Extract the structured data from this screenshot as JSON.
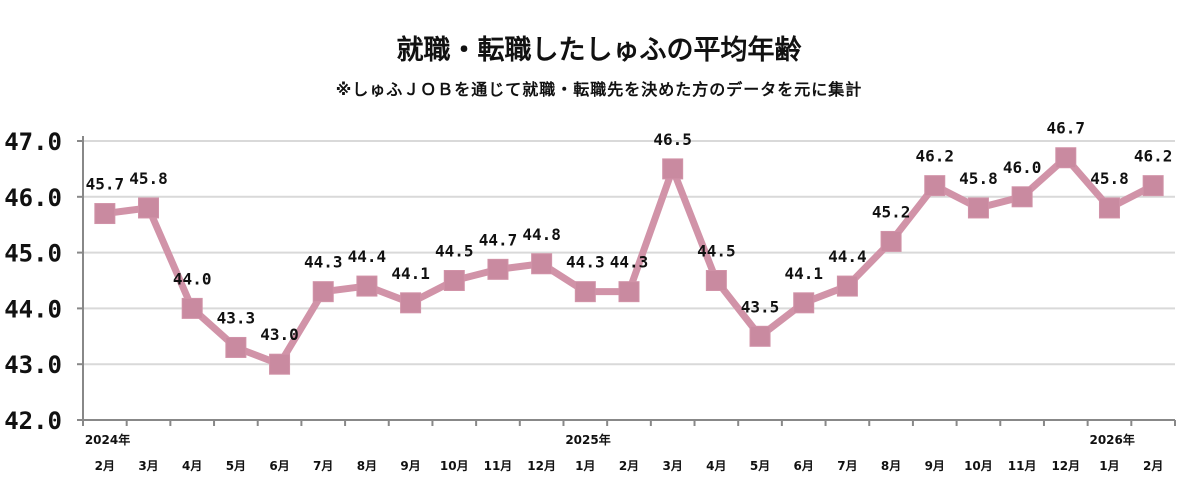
{
  "chart_data": {
    "type": "line",
    "title": "就職・転職したしゅふの平均年齢",
    "subtitle": "※しゅふＪＯＢを通じて就職・転職先を決めた方のデータを元に集計",
    "categories": [
      "2月",
      "3月",
      "4月",
      "5月",
      "6月",
      "7月",
      "8月",
      "9月",
      "10月",
      "11月",
      "12月",
      "1月",
      "2月",
      "3月",
      "4月",
      "5月",
      "6月",
      "7月",
      "8月",
      "9月",
      "10月",
      "11月",
      "12月",
      "1月",
      "2月"
    ],
    "year_labels": [
      {
        "index": 0,
        "label": "2024年"
      },
      {
        "index": 11,
        "label": "2025年"
      },
      {
        "index": 23,
        "label": "2026年"
      }
    ],
    "series": [
      {
        "values": [
          45.7,
          45.8,
          44.0,
          43.3,
          43.0,
          44.3,
          44.4,
          44.1,
          44.5,
          44.7,
          44.8,
          44.3,
          44.3,
          46.5,
          44.5,
          43.5,
          44.1,
          44.4,
          45.2,
          46.2,
          45.8,
          46.0,
          46.7,
          45.8,
          46.2
        ]
      }
    ],
    "data_labels": [
      "45.7",
      "45.8",
      "44.0",
      "43.3",
      "43.0",
      "44.3",
      "44.4",
      "44.1",
      "44.5",
      "44.7",
      "44.8",
      "44.3",
      "44.3",
      "46.5",
      "44.5",
      "43.5",
      "44.1",
      "44.4",
      "45.2",
      "46.2",
      "45.8",
      "46.0",
      "46.7",
      "45.8",
      "46.2"
    ],
    "ylim": [
      42.0,
      47.0
    ],
    "yticks": [
      "42.0",
      "43.0",
      "44.0",
      "45.0",
      "46.0",
      "47.0"
    ],
    "grid": true,
    "color": "#d193a8"
  }
}
